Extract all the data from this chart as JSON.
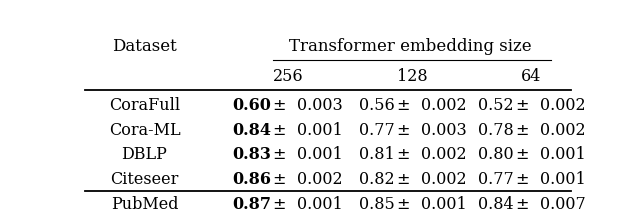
{
  "col_header_main": "Transformer embedding size",
  "col_header_sub": [
    "256",
    "128",
    "64"
  ],
  "row_header": "Dataset",
  "datasets": [
    "CoraFull",
    "Cora-ML",
    "DBLP",
    "Citeseer",
    "PubMed"
  ],
  "values": [
    [
      [
        "0.60",
        "0.003"
      ],
      [
        "0.56",
        "0.002"
      ],
      [
        "0.52",
        "0.002"
      ]
    ],
    [
      [
        "0.84",
        "0.001"
      ],
      [
        "0.77",
        "0.003"
      ],
      [
        "0.78",
        "0.002"
      ]
    ],
    [
      [
        "0.83",
        "0.001"
      ],
      [
        "0.81",
        "0.002"
      ],
      [
        "0.80",
        "0.001"
      ]
    ],
    [
      [
        "0.86",
        "0.002"
      ],
      [
        "0.82",
        "0.002"
      ],
      [
        "0.77",
        "0.001"
      ]
    ],
    [
      [
        "0.87",
        "0.001"
      ],
      [
        "0.85",
        "0.001"
      ],
      [
        "0.84",
        "0.007"
      ]
    ]
  ],
  "bold_col": [
    0,
    0,
    0,
    0,
    0
  ],
  "fig_width": 6.4,
  "fig_height": 2.17,
  "font_size": 11.5
}
